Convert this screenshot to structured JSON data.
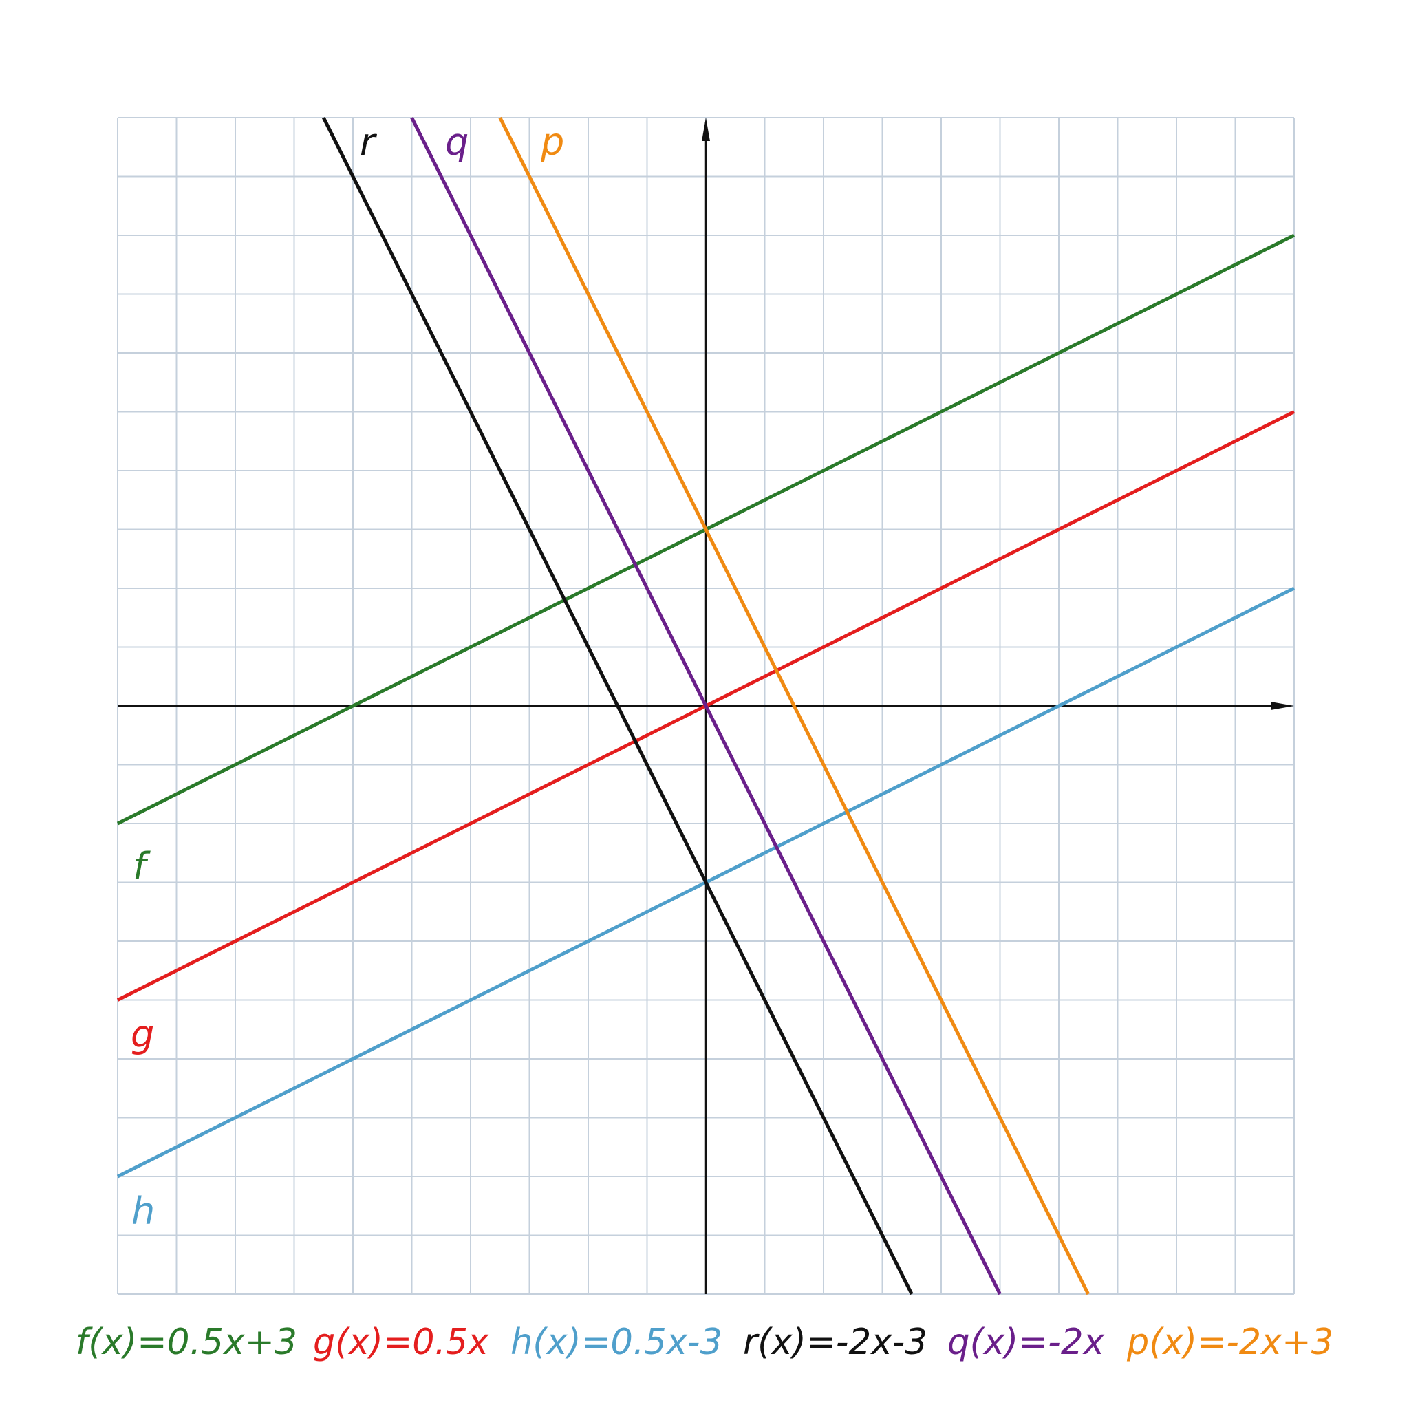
{
  "chart_data": {
    "type": "line",
    "title": "",
    "xlabel": "",
    "ylabel": "",
    "xlim": [
      -10,
      10
    ],
    "ylim": [
      -10,
      10
    ],
    "grid": true,
    "series": [
      {
        "name": "f",
        "legend": "f(x)=0.5x+3",
        "slope": 0.5,
        "intercept": 3,
        "color": "#2a7a2a"
      },
      {
        "name": "g",
        "legend": "g(x)=0.5x",
        "slope": 0.5,
        "intercept": 0,
        "color": "#e41e1e"
      },
      {
        "name": "h",
        "legend": "h(x)=0.5x-3",
        "slope": 0.5,
        "intercept": -3,
        "color": "#4f9fcb"
      },
      {
        "name": "r",
        "legend": "r(x)=-2x-3",
        "slope": -2,
        "intercept": -3,
        "color": "#111111"
      },
      {
        "name": "q",
        "legend": "q(x)=-2x",
        "slope": -2,
        "intercept": 0,
        "color": "#6a1f8a"
      },
      {
        "name": "p",
        "legend": "p(x)=-2x+3",
        "slope": -2,
        "intercept": 3,
        "color": "#f08a12"
      }
    ],
    "legend_position": "bottom"
  }
}
